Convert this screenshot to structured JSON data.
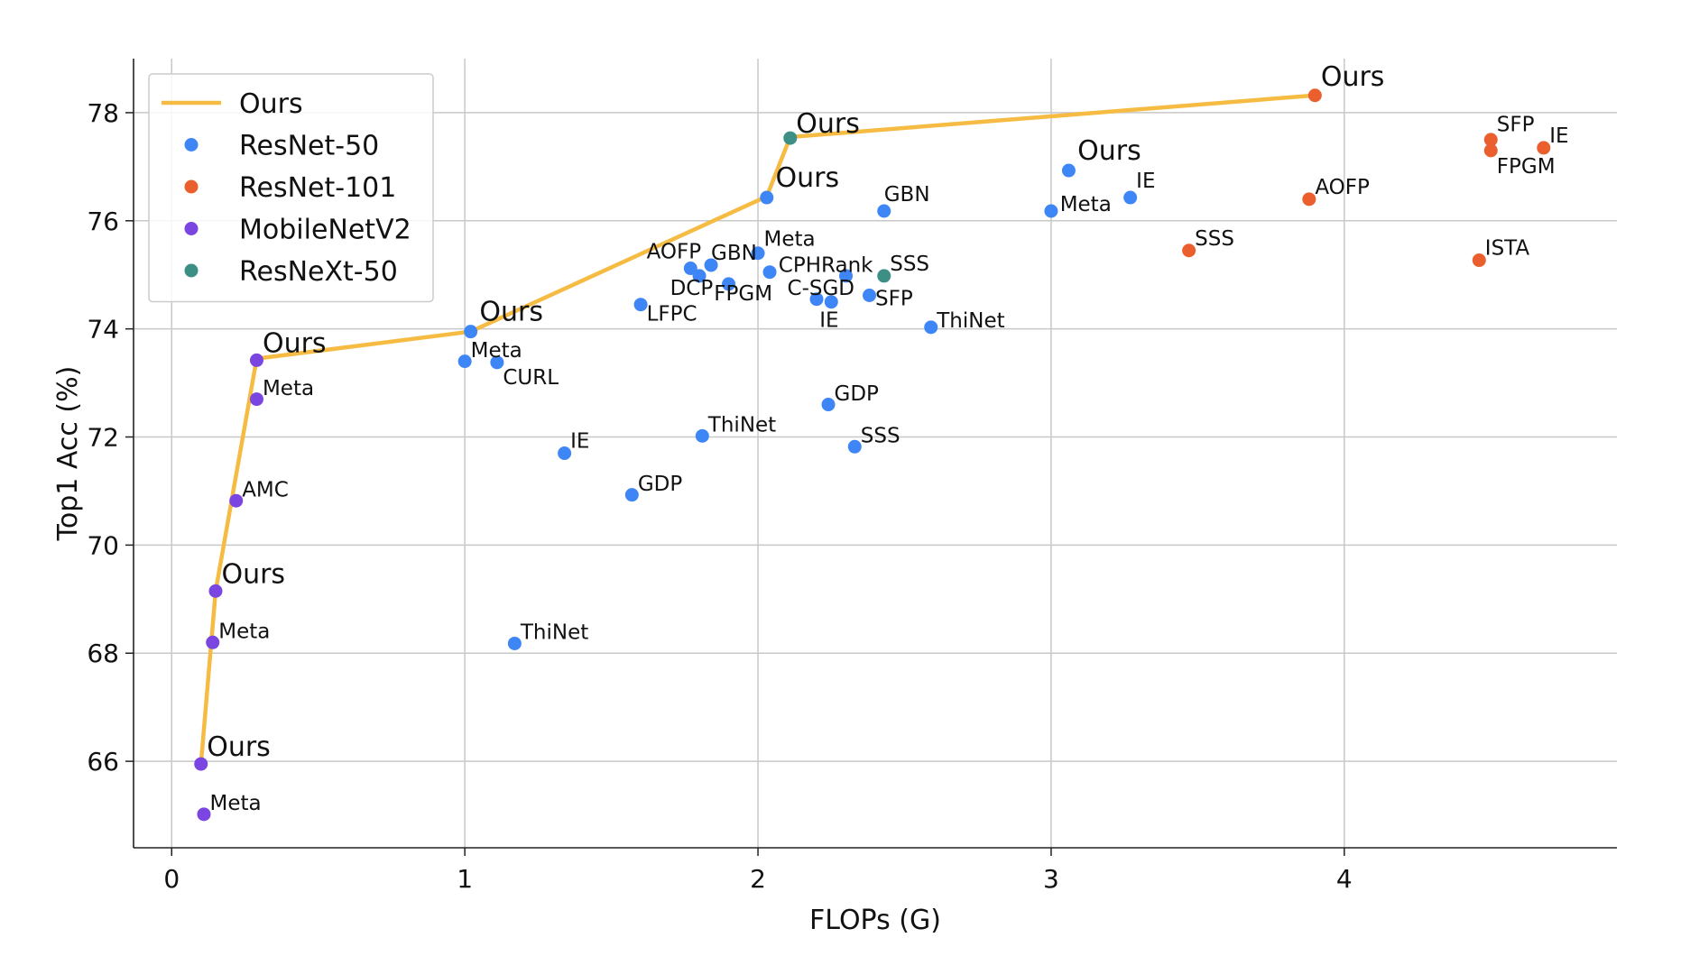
{
  "chart_data": {
    "type": "scatter",
    "xlabel": "FLOPs (G)",
    "ylabel": "Top1 Acc (%)",
    "xlim": [
      -0.13,
      4.93
    ],
    "ylim": [
      64.4,
      79.0
    ],
    "xticks": [
      0,
      1,
      2,
      3,
      4
    ],
    "yticks": [
      66,
      68,
      70,
      72,
      74,
      76,
      78
    ],
    "grid": true,
    "legend_position": "top-left",
    "colors": {
      "Ours": "#f6bb42",
      "ResNet-50": "#3e86f5",
      "ResNet-101": "#eb5f2e",
      "MobileNetV2": "#7a45e0",
      "ResNeXt-50": "#3d8f86"
    },
    "legend": [
      {
        "name": "Ours",
        "kind": "line"
      },
      {
        "name": "ResNet-50",
        "kind": "marker"
      },
      {
        "name": "ResNet-101",
        "kind": "marker"
      },
      {
        "name": "MobileNetV2",
        "kind": "marker"
      },
      {
        "name": "ResNeXt-50",
        "kind": "marker"
      }
    ],
    "ours_line": {
      "name": "Ours",
      "x": [
        0.1,
        0.15,
        0.29,
        1.02,
        2.03,
        2.11,
        3.9
      ],
      "y": [
        65.95,
        69.15,
        73.45,
        73.95,
        76.45,
        77.55,
        78.32
      ]
    },
    "series": [
      {
        "name": "ResNet-50",
        "points": [
          {
            "x": 2.03,
            "y": 76.43,
            "label": "Ours",
            "big": true,
            "lx": 0.03,
            "ly": 0.2
          },
          {
            "x": 1.02,
            "y": 73.95,
            "label": "Ours",
            "big": true,
            "lx": 0.03,
            "ly": 0.2
          },
          {
            "x": 3.06,
            "y": 76.93,
            "label": "Ours",
            "big": true,
            "lx": 0.03,
            "ly": 0.2
          },
          {
            "x": 2.43,
            "y": 76.18,
            "label": "GBN",
            "lx": 0.0,
            "ly": 0.18
          },
          {
            "x": 3.0,
            "y": 76.18,
            "label": "Meta",
            "lx": 0.03,
            "ly": 0.0
          },
          {
            "x": 3.27,
            "y": 76.43,
            "label": "IE",
            "lx": 0.02,
            "ly": 0.18
          },
          {
            "x": 2.0,
            "y": 75.4,
            "label": "Meta",
            "lx": 0.02,
            "ly": 0.14
          },
          {
            "x": 1.77,
            "y": 75.12,
            "label": "AOFP",
            "lx": -0.15,
            "ly": 0.18
          },
          {
            "x": 1.84,
            "y": 75.18,
            "label": "GBN",
            "lx": 0.0,
            "ly": 0.1
          },
          {
            "x": 2.04,
            "y": 75.05,
            "label": "CPHRank",
            "lx": 0.03,
            "ly": 0.0
          },
          {
            "x": 1.8,
            "y": 74.98,
            "label": "DCP",
            "lx": -0.1,
            "ly": -0.35
          },
          {
            "x": 1.9,
            "y": 74.83,
            "label": "FPGM",
            "lx": -0.05,
            "ly": -0.3
          },
          {
            "x": 2.3,
            "y": 74.98,
            "label": "",
            "lx": 0,
            "ly": 0
          },
          {
            "x": 2.2,
            "y": 74.55,
            "label": "C-SGD",
            "lx": -0.1,
            "ly": 0.08
          },
          {
            "x": 2.25,
            "y": 74.5,
            "label": "IE",
            "lx": -0.04,
            "ly": -0.46
          },
          {
            "x": 2.38,
            "y": 74.62,
            "label": "SFP",
            "lx": 0.02,
            "ly": -0.18
          },
          {
            "x": 1.6,
            "y": 74.45,
            "label": "LFPC",
            "lx": 0.02,
            "ly": -0.3
          },
          {
            "x": 2.59,
            "y": 74.03,
            "label": "ThiNet",
            "lx": 0.02,
            "ly": 0.0
          },
          {
            "x": 1.0,
            "y": 73.4,
            "label": "Meta",
            "lx": 0.02,
            "ly": 0.08
          },
          {
            "x": 1.11,
            "y": 73.38,
            "label": "CURL",
            "lx": 0.02,
            "ly": -0.4
          },
          {
            "x": 2.24,
            "y": 72.6,
            "label": "GDP",
            "lx": 0.02,
            "ly": 0.08
          },
          {
            "x": 1.81,
            "y": 72.02,
            "label": "ThiNet",
            "lx": 0.02,
            "ly": 0.08
          },
          {
            "x": 2.33,
            "y": 71.82,
            "label": "SSS",
            "lx": 0.02,
            "ly": 0.08
          },
          {
            "x": 1.34,
            "y": 71.7,
            "label": "IE",
            "lx": 0.02,
            "ly": 0.1
          },
          {
            "x": 1.57,
            "y": 70.93,
            "label": "GDP",
            "lx": 0.02,
            "ly": 0.08
          },
          {
            "x": 1.17,
            "y": 68.18,
            "label": "ThiNet",
            "lx": 0.02,
            "ly": 0.08
          }
        ]
      },
      {
        "name": "ResNet-101",
        "points": [
          {
            "x": 3.9,
            "y": 78.32,
            "label": "Ours",
            "big": true,
            "lx": 0.02,
            "ly": 0.18
          },
          {
            "x": 4.5,
            "y": 77.5,
            "label": "SFP",
            "lx": 0.02,
            "ly": 0.16
          },
          {
            "x": 4.5,
            "y": 77.3,
            "label": "FPGM",
            "lx": 0.02,
            "ly": -0.42
          },
          {
            "x": 4.68,
            "y": 77.35,
            "label": "IE",
            "lx": 0.02,
            "ly": 0.1
          },
          {
            "x": 3.88,
            "y": 76.4,
            "label": "AOFP",
            "lx": 0.02,
            "ly": 0.1
          },
          {
            "x": 3.47,
            "y": 75.45,
            "label": "SSS",
            "lx": 0.02,
            "ly": 0.1
          },
          {
            "x": 4.46,
            "y": 75.27,
            "label": "ISTA",
            "lx": 0.02,
            "ly": 0.1
          }
        ]
      },
      {
        "name": "MobileNetV2",
        "points": [
          {
            "x": 0.29,
            "y": 73.42,
            "label": "Ours",
            "big": true,
            "lx": 0.02,
            "ly": 0.15
          },
          {
            "x": 0.29,
            "y": 72.7,
            "label": "Meta",
            "lx": 0.02,
            "ly": 0.08
          },
          {
            "x": 0.22,
            "y": 70.82,
            "label": "AMC",
            "lx": 0.02,
            "ly": 0.08
          },
          {
            "x": 0.15,
            "y": 69.15,
            "label": "Ours",
            "big": true,
            "lx": 0.02,
            "ly": 0.15
          },
          {
            "x": 0.14,
            "y": 68.2,
            "label": "Meta",
            "lx": 0.02,
            "ly": 0.08
          },
          {
            "x": 0.1,
            "y": 65.95,
            "label": "Ours",
            "big": true,
            "lx": 0.02,
            "ly": 0.15
          },
          {
            "x": 0.11,
            "y": 65.02,
            "label": "Meta",
            "lx": 0.02,
            "ly": 0.08
          }
        ]
      },
      {
        "name": "ResNeXt-50",
        "points": [
          {
            "x": 2.11,
            "y": 77.53,
            "label": "Ours",
            "big": true,
            "lx": 0.02,
            "ly": 0.1
          },
          {
            "x": 2.43,
            "y": 74.98,
            "label": "SSS",
            "lx": 0.02,
            "ly": 0.1
          }
        ]
      }
    ]
  }
}
